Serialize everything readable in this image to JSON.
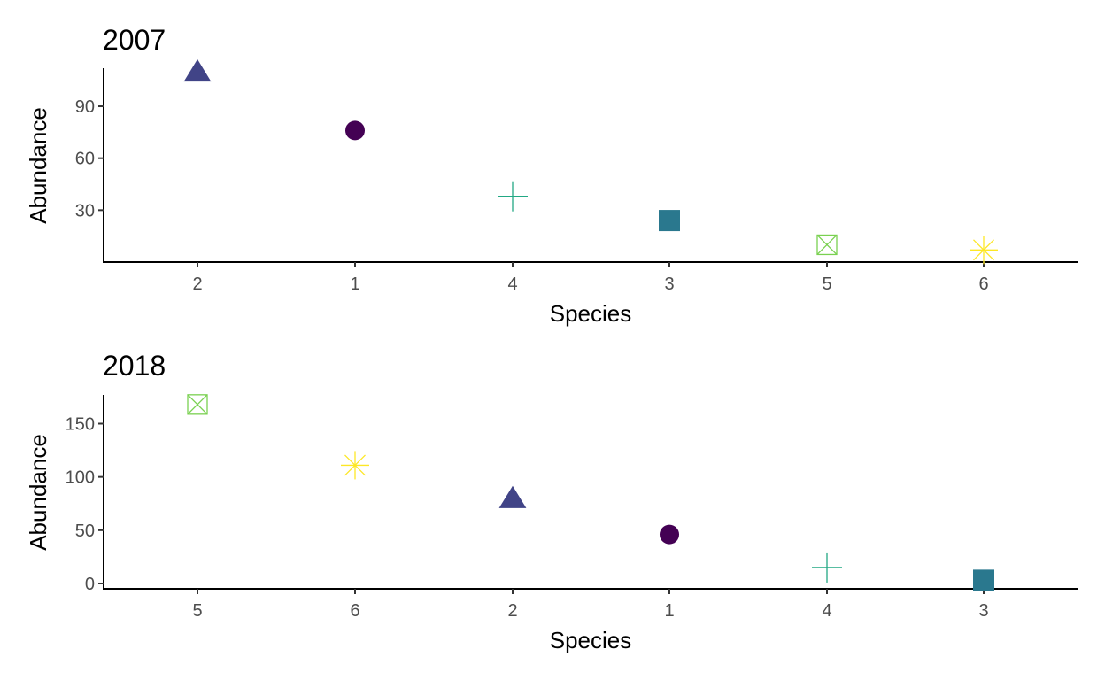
{
  "chart_data": [
    {
      "type": "scatter",
      "title": "2007",
      "xlabel": "Species",
      "ylabel": "Abundance",
      "categories": [
        "2",
        "1",
        "4",
        "3",
        "5",
        "6"
      ],
      "values": [
        110,
        76,
        38,
        24,
        10,
        7
      ],
      "yticks": [
        30,
        60,
        90
      ],
      "ylim": [
        0,
        112
      ],
      "grid": false,
      "legend": "none"
    },
    {
      "type": "scatter",
      "title": "2018",
      "xlabel": "Species",
      "ylabel": "Abundance",
      "categories": [
        "5",
        "6",
        "2",
        "1",
        "4",
        "3"
      ],
      "values": [
        168,
        111,
        80,
        46,
        15,
        3
      ],
      "yticks": [
        0,
        50,
        100,
        150
      ],
      "ylim": [
        -5,
        177
      ],
      "grid": false,
      "legend": "none"
    }
  ],
  "species_styles": {
    "1": {
      "shape": "circle",
      "color": "#440154"
    },
    "2": {
      "shape": "triangle",
      "color": "#414487"
    },
    "3": {
      "shape": "square",
      "color": "#2A788E"
    },
    "4": {
      "shape": "plus",
      "color": "#22A884"
    },
    "5": {
      "shape": "boxed-x",
      "color": "#7AD151"
    },
    "6": {
      "shape": "asterisk",
      "color": "#FDE725"
    }
  }
}
